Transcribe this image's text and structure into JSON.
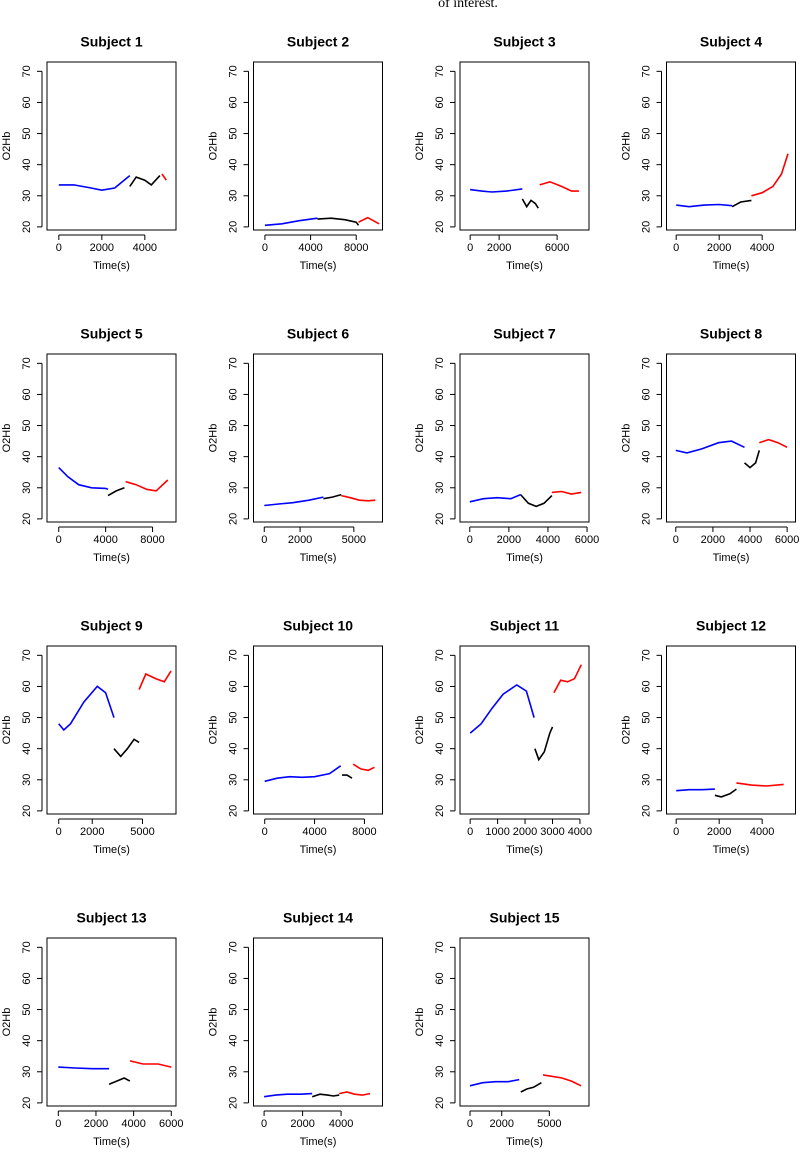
{
  "caption": "of interest.",
  "chart_data": [
    {
      "type": "line",
      "title": "Subject 1",
      "xlabel": "Time(s)",
      "ylabel": "O2Hb",
      "xlim": [
        -550,
        5450
      ],
      "ylim": [
        19,
        73
      ],
      "xticks": [
        0,
        2000,
        4000
      ],
      "yticks": [
        20,
        30,
        40,
        50,
        60,
        70
      ],
      "series": [
        {
          "color": "#0000ff",
          "x": [
            0,
            700,
            1500,
            2000,
            2600,
            3300
          ],
          "values": [
            33.5,
            33.5,
            32.5,
            31.8,
            32.5,
            36.5
          ]
        },
        {
          "color": "#000000",
          "x": [
            3300,
            3600,
            4000,
            4300,
            4700
          ],
          "values": [
            33,
            36,
            35,
            33.5,
            36.5
          ]
        },
        {
          "color": "#ff0000",
          "x": [
            4800,
            5000
          ],
          "values": [
            37,
            35
          ]
        }
      ]
    },
    {
      "type": "line",
      "title": "Subject 2",
      "xlabel": "Time(s)",
      "ylabel": "O2Hb",
      "xlim": [
        -1000,
        10300
      ],
      "ylim": [
        19,
        73
      ],
      "xticks": [
        0,
        4000,
        8000
      ],
      "yticks": [
        20,
        30,
        40,
        50,
        60,
        70
      ],
      "series": [
        {
          "color": "#0000ff",
          "x": [
            0,
            1500,
            3000,
            4600
          ],
          "values": [
            20.5,
            21,
            22,
            22.8
          ]
        },
        {
          "color": "#000000",
          "x": [
            4600,
            5800,
            7000,
            8000,
            8200
          ],
          "values": [
            22.5,
            22.8,
            22.3,
            21.5,
            20.5
          ]
        },
        {
          "color": "#ff0000",
          "x": [
            8200,
            9000,
            10000
          ],
          "values": [
            21.5,
            23,
            21
          ]
        }
      ]
    },
    {
      "type": "line",
      "title": "Subject 3",
      "xlabel": "Time(s)",
      "ylabel": "O2Hb",
      "xlim": [
        -700,
        8200
      ],
      "ylim": [
        19,
        73
      ],
      "xticks": [
        0,
        2000,
        6000
      ],
      "yticks": [
        20,
        30,
        40,
        50,
        60,
        70
      ],
      "series": [
        {
          "color": "#0000ff",
          "x": [
            0,
            800,
            1500,
            2500,
            3600
          ],
          "values": [
            32,
            31.5,
            31.2,
            31.5,
            32.2
          ]
        },
        {
          "color": "#000000",
          "x": [
            3600,
            3900,
            4200,
            4500,
            4700
          ],
          "values": [
            29,
            26.5,
            28.5,
            27.5,
            26
          ]
        },
        {
          "color": "#ff0000",
          "x": [
            4800,
            5500,
            6300,
            7000,
            7500
          ],
          "values": [
            33.5,
            34.5,
            33,
            31.5,
            31.5
          ]
        }
      ]
    },
    {
      "type": "line",
      "title": "Subject 4",
      "xlabel": "Time(s)",
      "ylabel": "O2Hb",
      "xlim": [
        -450,
        5550
      ],
      "ylim": [
        19,
        73
      ],
      "xticks": [
        0,
        2000,
        4000
      ],
      "yticks": [
        20,
        30,
        40,
        50,
        60,
        70
      ],
      "series": [
        {
          "color": "#0000ff",
          "x": [
            0,
            600,
            1300,
            2000,
            2600
          ],
          "values": [
            27,
            26.5,
            27,
            27.2,
            26.8
          ]
        },
        {
          "color": "#000000",
          "x": [
            2600,
            3000,
            3500
          ],
          "values": [
            26.5,
            28,
            28.5
          ]
        },
        {
          "color": "#ff0000",
          "x": [
            3500,
            4000,
            4500,
            4900,
            5200
          ],
          "values": [
            30,
            31,
            33,
            37,
            43.5
          ]
        }
      ]
    },
    {
      "type": "line",
      "title": "Subject 5",
      "xlabel": "Time(s)",
      "ylabel": "O2Hb",
      "xlim": [
        -1000,
        10000
      ],
      "ylim": [
        19,
        73
      ],
      "xticks": [
        0,
        4000,
        8000
      ],
      "yticks": [
        20,
        30,
        40,
        50,
        60,
        70
      ],
      "series": [
        {
          "color": "#0000ff",
          "x": [
            0,
            800,
            1700,
            2800,
            4000,
            4200
          ],
          "values": [
            36.5,
            33.5,
            31,
            30,
            29.8,
            29.5
          ]
        },
        {
          "color": "#000000",
          "x": [
            4200,
            4900,
            5600
          ],
          "values": [
            27.5,
            29,
            30
          ]
        },
        {
          "color": "#ff0000",
          "x": [
            5700,
            6600,
            7500,
            8300,
            9300
          ],
          "values": [
            32,
            31,
            29.5,
            29,
            32.5
          ]
        }
      ]
    },
    {
      "type": "line",
      "title": "Subject 6",
      "xlabel": "Time(s)",
      "ylabel": "O2Hb",
      "xlim": [
        -600,
        6600
      ],
      "ylim": [
        19,
        73
      ],
      "xticks": [
        0,
        2000,
        5000
      ],
      "yticks": [
        20,
        30,
        40,
        50,
        60,
        70
      ],
      "series": [
        {
          "color": "#0000ff",
          "x": [
            0,
            800,
            1600,
            2500,
            3300
          ],
          "values": [
            24.3,
            24.8,
            25.2,
            26,
            27
          ]
        },
        {
          "color": "#000000",
          "x": [
            3300,
            3800,
            4300
          ],
          "values": [
            26.5,
            27,
            27.8
          ]
        },
        {
          "color": "#ff0000",
          "x": [
            4300,
            4800,
            5300,
            5800,
            6200
          ],
          "values": [
            27.5,
            26.8,
            26,
            25.8,
            26
          ]
        }
      ]
    },
    {
      "type": "line",
      "title": "Subject 7",
      "xlabel": "Time(s)",
      "ylabel": "O2Hb",
      "xlim": [
        -500,
        6100
      ],
      "ylim": [
        19,
        73
      ],
      "xticks": [
        0,
        2000,
        4000,
        6000
      ],
      "yticks": [
        20,
        30,
        40,
        50,
        60,
        70
      ],
      "series": [
        {
          "color": "#0000ff",
          "x": [
            0,
            700,
            1400,
            2100,
            2600
          ],
          "values": [
            25.5,
            26.5,
            26.8,
            26.5,
            27.8
          ]
        },
        {
          "color": "#000000",
          "x": [
            2600,
            3000,
            3400,
            3800,
            4200
          ],
          "values": [
            27.8,
            25,
            24,
            25,
            27.5
          ]
        },
        {
          "color": "#ff0000",
          "x": [
            4200,
            4700,
            5200,
            5700
          ],
          "values": [
            28.5,
            28.8,
            28,
            28.5
          ]
        }
      ]
    },
    {
      "type": "line",
      "title": "Subject 8",
      "xlabel": "Time(s)",
      "ylabel": "O2Hb",
      "xlim": [
        -500,
        6450
      ],
      "ylim": [
        19,
        73
      ],
      "xticks": [
        0,
        2000,
        4000,
        6000
      ],
      "yticks": [
        20,
        30,
        40,
        50,
        60,
        70
      ],
      "series": [
        {
          "color": "#0000ff",
          "x": [
            0,
            600,
            1400,
            2300,
            3000,
            3700
          ],
          "values": [
            42,
            41.2,
            42.5,
            44.5,
            45,
            43
          ]
        },
        {
          "color": "#000000",
          "x": [
            3700,
            4000,
            4300,
            4500
          ],
          "values": [
            38,
            36.5,
            38,
            42
          ]
        },
        {
          "color": "#ff0000",
          "x": [
            4500,
            5000,
            5500,
            6000
          ],
          "values": [
            44.5,
            45.5,
            44.5,
            43
          ]
        }
      ]
    },
    {
      "type": "line",
      "title": "Subject 9",
      "xlabel": "Time(s)",
      "ylabel": "O2Hb",
      "xlim": [
        -700,
        7000
      ],
      "ylim": [
        19,
        73
      ],
      "xticks": [
        0,
        2000,
        5000
      ],
      "yticks": [
        20,
        30,
        40,
        50,
        60,
        70
      ],
      "series": [
        {
          "color": "#0000ff",
          "x": [
            0,
            300,
            700,
            1500,
            2300,
            2800,
            3300
          ],
          "values": [
            48,
            46,
            48,
            55,
            60,
            58,
            50
          ]
        },
        {
          "color": "#000000",
          "x": [
            3300,
            3700,
            4100,
            4500,
            4800
          ],
          "values": [
            40,
            37.5,
            40,
            43,
            42
          ]
        },
        {
          "color": "#ff0000",
          "x": [
            4800,
            5200,
            5800,
            6300,
            6700
          ],
          "values": [
            59,
            64,
            62.5,
            61.5,
            65
          ]
        }
      ]
    },
    {
      "type": "line",
      "title": "Subject 10",
      "xlabel": "Time(s)",
      "ylabel": "O2Hb",
      "xlim": [
        -900,
        9450
      ],
      "ylim": [
        19,
        73
      ],
      "xticks": [
        0,
        4000,
        8000
      ],
      "yticks": [
        20,
        30,
        40,
        50,
        60,
        70
      ],
      "series": [
        {
          "color": "#0000ff",
          "x": [
            0,
            1000,
            2000,
            3000,
            4000,
            5200,
            6100
          ],
          "values": [
            29.5,
            30.5,
            31,
            30.8,
            31,
            32,
            34.5
          ]
        },
        {
          "color": "#000000",
          "x": [
            6200,
            6600,
            7000
          ],
          "values": [
            31.5,
            31.5,
            30.5
          ]
        },
        {
          "color": "#ff0000",
          "x": [
            7100,
            7700,
            8300,
            8800
          ],
          "values": [
            35,
            33.5,
            33,
            34
          ]
        }
      ]
    },
    {
      "type": "line",
      "title": "Subject 11",
      "xlabel": "Time(s)",
      "ylabel": "O2Hb",
      "xlim": [
        -370,
        4330
      ],
      "ylim": [
        19,
        73
      ],
      "xticks": [
        0,
        1000,
        2000,
        3000,
        4000
      ],
      "yticks": [
        20,
        30,
        40,
        50,
        60,
        70
      ],
      "series": [
        {
          "color": "#0000ff",
          "x": [
            0,
            400,
            800,
            1200,
            1700,
            2050,
            2330
          ],
          "values": [
            45,
            48,
            53,
            57.5,
            60.5,
            58.5,
            50
          ]
        },
        {
          "color": "#000000",
          "x": [
            2360,
            2500,
            2700,
            2900,
            3000
          ],
          "values": [
            40,
            36.5,
            39,
            45,
            47
          ]
        },
        {
          "color": "#ff0000",
          "x": [
            3050,
            3300,
            3550,
            3800,
            4050
          ],
          "values": [
            58,
            62,
            61.5,
            62.5,
            67
          ]
        }
      ]
    },
    {
      "type": "line",
      "title": "Subject 12",
      "xlabel": "Time(s)",
      "ylabel": "O2Hb",
      "xlim": [
        -450,
        5550
      ],
      "ylim": [
        19,
        73
      ],
      "xticks": [
        0,
        2000,
        4000
      ],
      "yticks": [
        20,
        30,
        40,
        50,
        60,
        70
      ],
      "series": [
        {
          "color": "#0000ff",
          "x": [
            0,
            600,
            1200,
            1800
          ],
          "values": [
            26.5,
            26.8,
            26.8,
            27
          ]
        },
        {
          "color": "#000000",
          "x": [
            1800,
            2100,
            2500,
            2800
          ],
          "values": [
            25,
            24.5,
            25.5,
            27
          ]
        },
        {
          "color": "#ff0000",
          "x": [
            2800,
            3500,
            4200,
            5000
          ],
          "values": [
            29,
            28.3,
            28,
            28.5
          ]
        }
      ]
    },
    {
      "type": "line",
      "title": "Subject 13",
      "xlabel": "Time(s)",
      "ylabel": "O2Hb",
      "xlim": [
        -600,
        6250
      ],
      "ylim": [
        19,
        73
      ],
      "xticks": [
        0,
        2000,
        4000,
        6000
      ],
      "yticks": [
        20,
        30,
        40,
        50,
        60,
        70
      ],
      "series": [
        {
          "color": "#0000ff",
          "x": [
            0,
            900,
            1800,
            2700
          ],
          "values": [
            31.5,
            31.2,
            31,
            31
          ]
        },
        {
          "color": "#000000",
          "x": [
            2700,
            3100,
            3500,
            3800
          ],
          "values": [
            26,
            27,
            28,
            27
          ]
        },
        {
          "color": "#ff0000",
          "x": [
            3800,
            4500,
            5300,
            6000
          ],
          "values": [
            33.5,
            32.5,
            32.5,
            31.5
          ]
        }
      ]
    },
    {
      "type": "line",
      "title": "Subject 14",
      "xlabel": "Time(s)",
      "ylabel": "O2Hb",
      "xlim": [
        -550,
        6150
      ],
      "ylim": [
        19,
        73
      ],
      "xticks": [
        0,
        2000,
        4000
      ],
      "yticks": [
        20,
        30,
        40,
        50,
        60,
        70
      ],
      "series": [
        {
          "color": "#0000ff",
          "x": [
            0,
            600,
            1200,
            1900,
            2500
          ],
          "values": [
            22,
            22.5,
            22.8,
            22.8,
            23
          ]
        },
        {
          "color": "#000000",
          "x": [
            2500,
            2900,
            3300,
            3600,
            3900
          ],
          "values": [
            22,
            22.8,
            22.5,
            22.2,
            22.5
          ]
        },
        {
          "color": "#ff0000",
          "x": [
            3900,
            4300,
            4700,
            5100,
            5500
          ],
          "values": [
            23,
            23.5,
            22.8,
            22.5,
            23
          ]
        }
      ]
    },
    {
      "type": "line",
      "title": "Subject 15",
      "xlabel": "Time(s)",
      "ylabel": "O2Hb",
      "xlim": [
        -630,
        7500
      ],
      "ylim": [
        19,
        73
      ],
      "xticks": [
        0,
        2000,
        5000
      ],
      "yticks": [
        20,
        30,
        40,
        50,
        60,
        70
      ],
      "series": [
        {
          "color": "#0000ff",
          "x": [
            0,
            800,
            1600,
            2400,
            3100
          ],
          "values": [
            25.5,
            26.5,
            26.8,
            26.8,
            27.5
          ]
        },
        {
          "color": "#000000",
          "x": [
            3200,
            3600,
            4000,
            4500
          ],
          "values": [
            23.5,
            24.5,
            25,
            26.5
          ]
        },
        {
          "color": "#ff0000",
          "x": [
            4600,
            5200,
            5800,
            6400,
            7000
          ],
          "values": [
            29,
            28.5,
            28,
            27,
            25.5
          ]
        }
      ]
    }
  ]
}
